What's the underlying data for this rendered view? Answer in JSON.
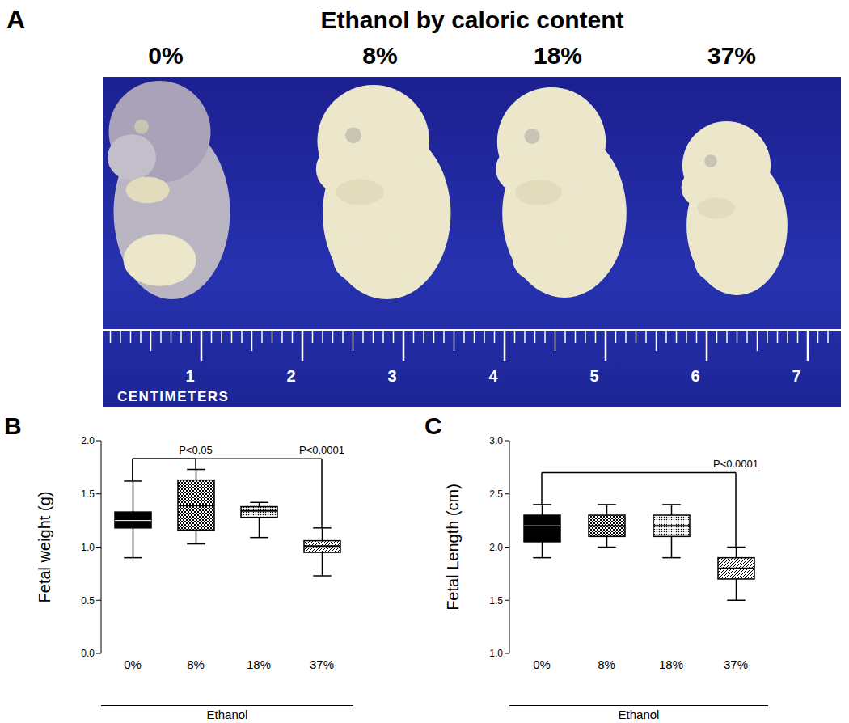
{
  "panel_a": {
    "panel": "A",
    "title": "Ethanol by caloric content",
    "groups": [
      "0%",
      "8%",
      "18%",
      "37%"
    ],
    "ruler_ticks": [
      1,
      2,
      3,
      4,
      5,
      6,
      7
    ],
    "ruler_unit": "CENTIMETERS"
  },
  "chart_data": [
    {
      "type": "box",
      "panel": "B",
      "xlabel": "Ethanol",
      "ylabel": "Fetal weight (g)",
      "categories": [
        "0%",
        "8%",
        "18%",
        "37%"
      ],
      "boxes": [
        {
          "min": 0.9,
          "q1": 1.18,
          "median": 1.25,
          "q3": 1.33,
          "max": 1.62
        },
        {
          "min": 1.03,
          "q1": 1.16,
          "median": 1.39,
          "q3": 1.63,
          "max": 1.73
        },
        {
          "min": 1.09,
          "q1": 1.28,
          "median": 1.34,
          "q3": 1.38,
          "max": 1.42
        },
        {
          "min": 0.73,
          "q1": 0.95,
          "median": 1.01,
          "q3": 1.06,
          "max": 1.18
        }
      ],
      "colors": [
        "#000000",
        "#000000",
        "#000000",
        "#000000"
      ],
      "ylim": [
        0,
        2
      ],
      "yticks": [
        {
          "value": 0,
          "label": "0.0"
        },
        {
          "value": 0.5,
          "label": "0.5"
        },
        {
          "value": 1,
          "label": "1.0"
        },
        {
          "value": 1.5,
          "label": "1.5"
        },
        {
          "value": 2,
          "label": "2.0"
        }
      ],
      "annotations": [
        {
          "text": "P<0.05",
          "from": "0%",
          "to": "8%",
          "y": 1.83
        },
        {
          "text": "P<0.0001",
          "from": "0%",
          "to": "37%",
          "y": 1.83
        }
      ]
    },
    {
      "type": "box",
      "panel": "C",
      "xlabel": "Ethanol",
      "ylabel": "Fetal Length (cm)",
      "categories": [
        "0%",
        "8%",
        "18%",
        "37%"
      ],
      "boxes": [
        {
          "min": 1.9,
          "q1": 2.05,
          "median": 2.2,
          "q3": 2.3,
          "max": 2.4
        },
        {
          "min": 2.0,
          "q1": 2.1,
          "median": 2.2,
          "q3": 2.3,
          "max": 2.4
        },
        {
          "min": 1.9,
          "q1": 2.1,
          "median": 2.2,
          "q3": 2.3,
          "max": 2.4
        },
        {
          "min": 1.5,
          "q1": 1.7,
          "median": 1.8,
          "q3": 1.9,
          "max": 2.0
        }
      ],
      "colors": [
        "#000000",
        "#000000",
        "#000000",
        "#000000"
      ],
      "ylim": [
        1,
        3
      ],
      "yticks": [
        {
          "value": 1,
          "label": "1.0"
        },
        {
          "value": 1.5,
          "label": "1.5"
        },
        {
          "value": 2,
          "label": "2.0"
        },
        {
          "value": 2.5,
          "label": "2.5"
        },
        {
          "value": 3,
          "label": "3.0"
        }
      ],
      "annotations": [
        {
          "text": "P<0.0001",
          "from": "0%",
          "to": "37%",
          "y": 2.7
        }
      ]
    }
  ]
}
